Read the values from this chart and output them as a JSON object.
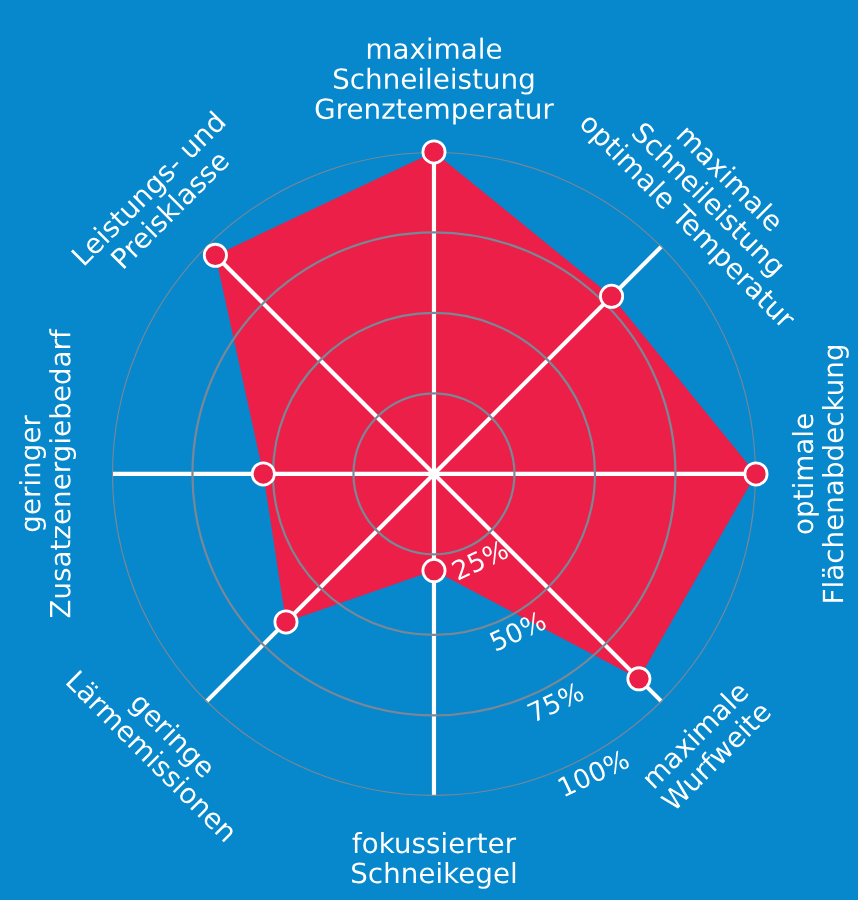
{
  "chart_data": {
    "type": "radar",
    "categories": [
      "maximale\nSchneileistung\nGrenztemperatur",
      "maximale\nSchneileistung\noptimale Temperatur",
      "optimale\nFlächenabdeckung",
      "maximale\nWurfweite",
      "fokussierter\nSchneikegel",
      "geringe\nLärmemissionen",
      "geringer\nZusatzenergiebedarf",
      "Leistungs- und\nPreisklasse"
    ],
    "series": [
      {
        "color": "#ec1f48",
        "values": [
          100,
          78,
          100,
          90,
          30,
          65,
          53,
          96
        ]
      }
    ],
    "ylim": [
      0,
      100
    ],
    "yticks": [
      {
        "value": 25,
        "label": "25%"
      },
      {
        "value": 50,
        "label": "50%"
      },
      {
        "value": 75,
        "label": "75%"
      },
      {
        "value": 100,
        "label": "100%"
      }
    ],
    "grid": true,
    "marker": "circle"
  }
}
